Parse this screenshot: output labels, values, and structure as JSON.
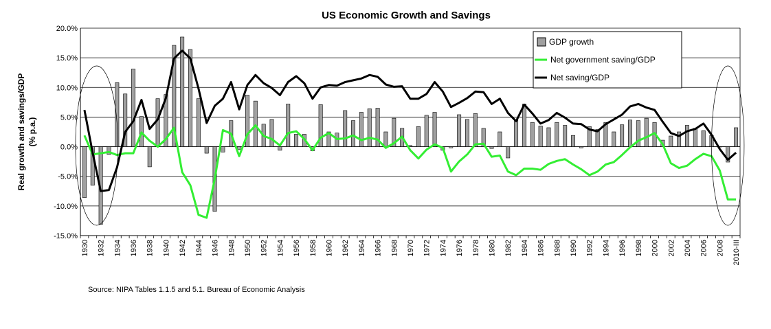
{
  "chart_data": {
    "type": "bar+line",
    "title": "US Economic Growth and Savings",
    "ylabel_line1": "Real growth and savings/GDP",
    "ylabel_line2": "(% p.a.)",
    "source": "Source: NIPA Tables 1.1.5 and 5.1. Bureau of Economic Analysis",
    "ylim": [
      -15,
      20
    ],
    "yticks": [
      20,
      15,
      10,
      5,
      0,
      -5,
      -10,
      -15
    ],
    "ytick_labels": [
      "20.0%",
      "15.0%",
      "10.0%",
      "5.0%",
      "0.0%",
      "-5.0%",
      "-10.0%",
      "-15.0%"
    ],
    "grid": true,
    "legend_position": "top-right",
    "categories": [
      "1930",
      "1931",
      "1932",
      "1933",
      "1934",
      "1935",
      "1936",
      "1937",
      "1938",
      "1939",
      "1940",
      "1941",
      "1942",
      "1943",
      "1944",
      "1945",
      "1946",
      "1947",
      "1948",
      "1949",
      "1950",
      "1951",
      "1952",
      "1953",
      "1954",
      "1955",
      "1956",
      "1957",
      "1958",
      "1959",
      "1960",
      "1961",
      "1962",
      "1963",
      "1964",
      "1965",
      "1966",
      "1967",
      "1968",
      "1969",
      "1970",
      "1971",
      "1972",
      "1973",
      "1974",
      "1975",
      "1976",
      "1977",
      "1978",
      "1979",
      "1980",
      "1981",
      "1982",
      "1983",
      "1984",
      "1985",
      "1986",
      "1987",
      "1988",
      "1989",
      "1990",
      "1991",
      "1992",
      "1993",
      "1994",
      "1995",
      "1996",
      "1997",
      "1998",
      "1999",
      "2000",
      "2001",
      "2002",
      "2003",
      "2004",
      "2005",
      "2006",
      "2007",
      "2008",
      "2009",
      "2010-III"
    ],
    "xtick_labels": [
      "1930",
      "",
      "1932",
      "",
      "1934",
      "",
      "1936",
      "",
      "1938",
      "",
      "1940",
      "",
      "1942",
      "",
      "1944",
      "",
      "1946",
      "",
      "1948",
      "",
      "1950",
      "",
      "1952",
      "",
      "1954",
      "",
      "1956",
      "",
      "1958",
      "",
      "1960",
      "",
      "1962",
      "",
      "1964",
      "",
      "1966",
      "",
      "1968",
      "",
      "1970",
      "",
      "1972",
      "",
      "1974",
      "",
      "1976",
      "",
      "1978",
      "",
      "1980",
      "",
      "1982",
      "",
      "1984",
      "",
      "1986",
      "",
      "1988",
      "",
      "1990",
      "",
      "1992",
      "",
      "1994",
      "",
      "1996",
      "",
      "1998",
      "",
      "2000",
      "",
      "2002",
      "",
      "2004",
      "",
      "2006",
      "",
      "2008",
      "",
      "2010-III"
    ],
    "series": [
      {
        "name": "GDP growth",
        "type": "bar",
        "color": "#a0a0a0",
        "values": [
          -8.6,
          -6.5,
          -13.1,
          -1.3,
          10.8,
          8.9,
          13.1,
          5.1,
          -3.4,
          8.1,
          8.8,
          17.1,
          18.5,
          16.4,
          8.1,
          -1.1,
          -10.9,
          -0.9,
          4.4,
          -0.5,
          8.7,
          7.7,
          3.8,
          4.6,
          -0.6,
          7.2,
          2.1,
          2.1,
          -0.7,
          7.1,
          2.5,
          2.3,
          6.1,
          4.4,
          5.8,
          6.4,
          6.5,
          2.5,
          4.8,
          3.1,
          0.2,
          3.4,
          5.3,
          5.8,
          -0.6,
          -0.2,
          5.4,
          4.6,
          5.6,
          3.1,
          -0.3,
          2.5,
          -1.9,
          4.5,
          7.2,
          4.1,
          3.5,
          3.2,
          4.1,
          3.6,
          1.9,
          -0.2,
          3.4,
          2.9,
          4.1,
          2.5,
          3.7,
          4.5,
          4.4,
          4.8,
          4.1,
          1.1,
          1.8,
          2.5,
          3.6,
          3.1,
          2.7,
          1.9,
          0.0,
          -2.6,
          3.2
        ]
      },
      {
        "name": "Net government saving/GDP",
        "type": "line",
        "color": "#33ee33",
        "values": [
          1.9,
          -1.3,
          -1.1,
          -0.9,
          -1.4,
          -1.1,
          -1.1,
          2.4,
          1.0,
          0.0,
          1.3,
          3.2,
          -4.3,
          -6.5,
          -11.5,
          -12.0,
          -5.4,
          2.8,
          2.2,
          -1.6,
          2.1,
          3.6,
          1.8,
          1.3,
          0.2,
          2.3,
          2.6,
          1.3,
          -0.6,
          1.5,
          2.3,
          1.3,
          1.4,
          1.9,
          1.1,
          1.5,
          1.2,
          -0.2,
          0.6,
          1.7,
          -0.6,
          -2.0,
          -0.5,
          0.4,
          -0.2,
          -4.2,
          -2.5,
          -1.3,
          0.4,
          0.5,
          -1.7,
          -1.5,
          -4.2,
          -4.8,
          -3.7,
          -3.7,
          -3.9,
          -2.9,
          -2.4,
          -2.1,
          -3.0,
          -3.8,
          -4.8,
          -4.2,
          -3.0,
          -2.6,
          -1.4,
          -0.1,
          1.0,
          1.6,
          2.3,
          0.4,
          -2.8,
          -3.6,
          -3.2,
          -2.1,
          -1.2,
          -1.6,
          -4.0,
          -8.9,
          -8.9
        ]
      },
      {
        "name": "Net saving/GDP",
        "type": "line",
        "color": "#000000",
        "values": [
          6.2,
          -1.0,
          -7.5,
          -7.3,
          -3.5,
          2.5,
          4.3,
          7.9,
          3.0,
          4.6,
          8.2,
          14.9,
          16.2,
          14.9,
          9.8,
          4.0,
          6.9,
          8.1,
          10.9,
          6.3,
          10.4,
          12.1,
          10.7,
          9.9,
          8.7,
          10.9,
          11.9,
          10.7,
          8.1,
          10.0,
          10.4,
          10.3,
          10.9,
          11.2,
          11.5,
          12.1,
          11.8,
          10.5,
          10.1,
          10.2,
          8.1,
          8.1,
          8.9,
          10.9,
          9.3,
          6.7,
          7.4,
          8.2,
          9.3,
          9.2,
          7.2,
          8.1,
          5.7,
          4.3,
          7.1,
          5.6,
          3.9,
          4.5,
          5.7,
          4.9,
          3.9,
          3.8,
          2.9,
          2.6,
          3.8,
          4.6,
          5.4,
          6.8,
          7.2,
          6.6,
          6.2,
          4.2,
          2.3,
          1.8,
          2.6,
          3.0,
          3.9,
          2.0,
          -0.4,
          -2.2,
          -1.0
        ]
      }
    ],
    "annotations": [
      "ellipse around 1930-1933",
      "ellipse around 2008-2010-III"
    ]
  }
}
